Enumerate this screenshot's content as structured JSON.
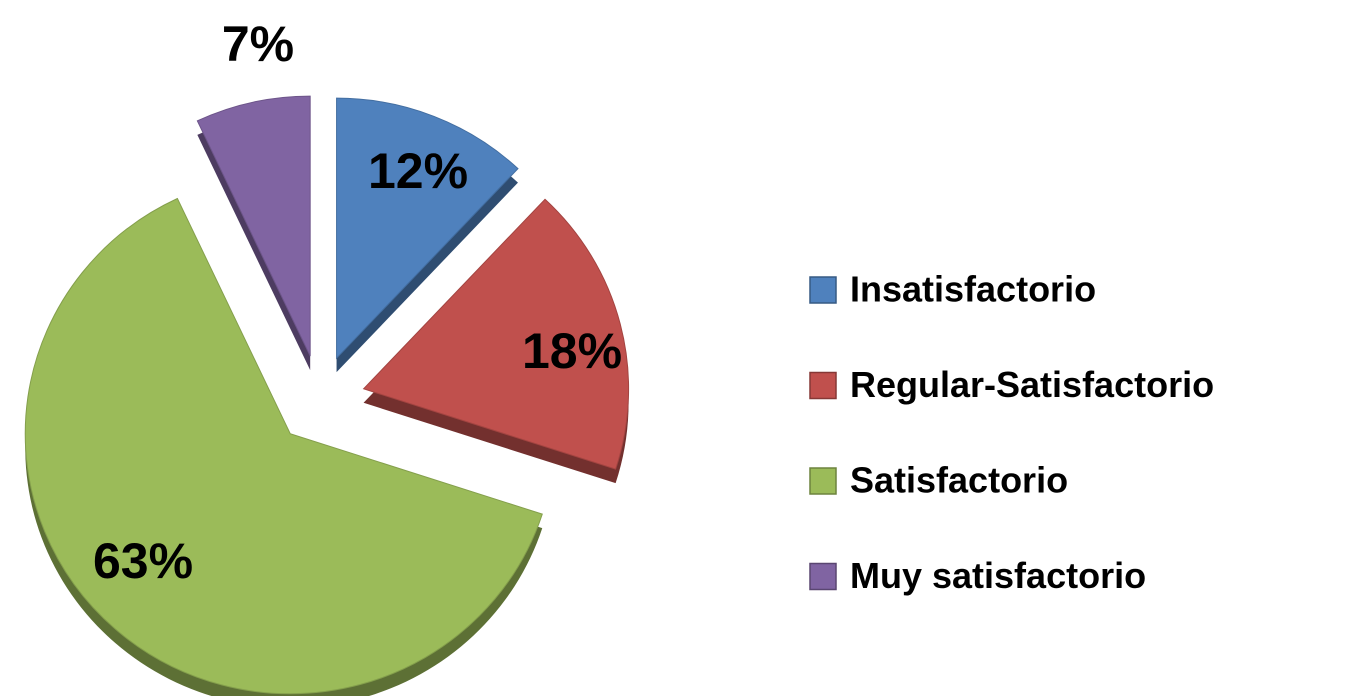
{
  "chart_data": {
    "type": "pie",
    "categories": [
      "Insatisfactorio",
      "Regular-Satisfactorio",
      "Satisfactorio",
      "Muy satisfactorio"
    ],
    "values": [
      12,
      18,
      63,
      7
    ],
    "value_labels": [
      "12%",
      "18%",
      "63%",
      "7%"
    ],
    "colors": [
      "#4f81bd",
      "#c0504d",
      "#9bbb59",
      "#8064a2"
    ],
    "legend": "right"
  }
}
